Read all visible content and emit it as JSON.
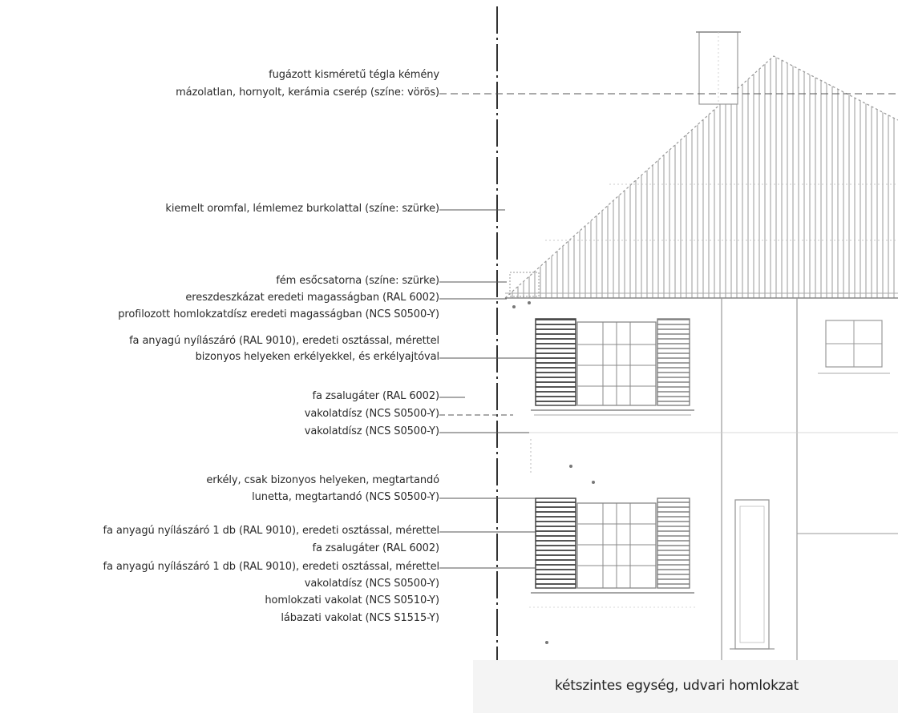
{
  "annotations": [
    {
      "id": "a1",
      "text": "fugázott kisméretű tégla kémény"
    },
    {
      "id": "a2",
      "text": "mázolatlan, hornyolt, kerámia cserép (színe: vörös)"
    },
    {
      "id": "a3",
      "text": "kiemelt oromfal, lémlemez burkolattal (színe: szürke)"
    },
    {
      "id": "a4",
      "text": "fém esőcsatorna (színe: szürke)"
    },
    {
      "id": "a5",
      "text": "ereszdeszkázat eredeti magasságban (RAL 6002)"
    },
    {
      "id": "a6",
      "text": "profilozott homlokzatdísz eredeti magasságban (NCS S0500-Y)"
    },
    {
      "id": "a7",
      "text": "fa anyagú nyílászáró (RAL 9010), eredeti osztással, mérettel"
    },
    {
      "id": "a8",
      "text": "bizonyos helyeken erkélyekkel, és erkélyajtóval"
    },
    {
      "id": "a9",
      "text": "fa zsalugáter (RAL 6002)"
    },
    {
      "id": "a10",
      "text": "vakolatdísz (NCS S0500-Y)"
    },
    {
      "id": "a11",
      "text": "vakolatdísz (NCS S0500-Y)"
    },
    {
      "id": "a12",
      "text": "erkély, csak bizonyos helyeken, megtartandó"
    },
    {
      "id": "a13",
      "text": "lunetta, megtartandó (NCS S0500-Y)"
    },
    {
      "id": "a14",
      "text": "fa anyagú nyílászáró 1 db (RAL 9010), eredeti osztással, mérettel"
    },
    {
      "id": "a15",
      "text": "fa zsalugáter (RAL 6002)"
    },
    {
      "id": "a16",
      "text": "fa anyagú nyílászáró 1 db (RAL 9010), eredeti osztással, mérettel"
    },
    {
      "id": "a17",
      "text": "vakolatdísz (NCS S0500-Y)"
    },
    {
      "id": "a18",
      "text": "homlokzati vakolat (NCS S0510-Y)"
    },
    {
      "id": "a19",
      "text": "lábazati vakolat (NCS S1515-Y)"
    }
  ],
  "caption": "kétszintes egység, udvari homlokzat",
  "colors": {
    "text": "#2a2a2a",
    "line": "#666666",
    "drawing": "#8a8a8a",
    "axis": "#333333"
  }
}
